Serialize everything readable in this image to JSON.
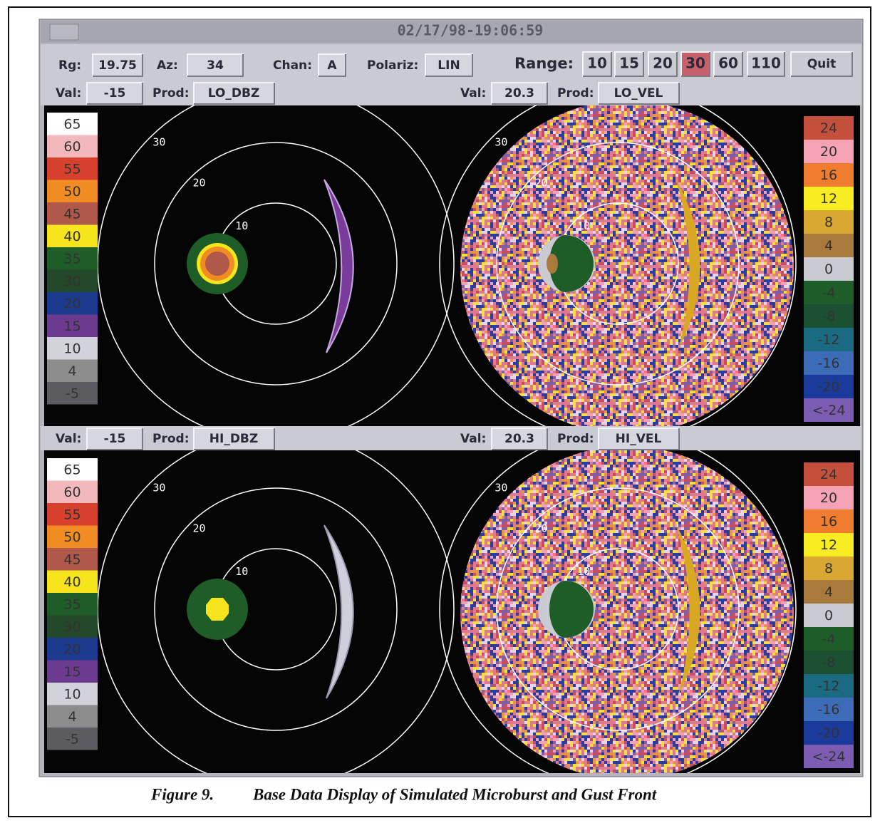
{
  "window": {
    "title": "02/17/98-19:06:59"
  },
  "toolbar": {
    "fields": [
      {
        "label": "Rg:",
        "value": "19.75"
      },
      {
        "label": "Az:",
        "value": "34"
      },
      {
        "label": "Chan:",
        "value": "A"
      },
      {
        "label": "Polariz:",
        "value": "LIN"
      }
    ],
    "range_label": "Range:",
    "range_buttons": [
      "10",
      "15",
      "20",
      "30",
      "60",
      "110"
    ],
    "selected_range_index": 3,
    "quit": "Quit"
  },
  "rows": [
    {
      "left": {
        "val_label": "Val:",
        "val": "-15",
        "prod_label": "Prod:",
        "prod": "LO_DBZ"
      },
      "right": {
        "val_label": "Val:",
        "val": "20.3",
        "prod_label": "Prod:",
        "prod": "LO_VEL"
      }
    },
    {
      "left": {
        "val_label": "Val:",
        "val": "-15",
        "prod_label": "Prod:",
        "prod": "HI_DBZ"
      },
      "right": {
        "val_label": "Val:",
        "val": "20.3",
        "prod_label": "Prod:",
        "prod": "HI_VEL"
      }
    }
  ],
  "ring_labels": [
    "30",
    "20",
    "10"
  ],
  "legends": {
    "reflectivity": {
      "labels": [
        "65",
        "60",
        "55",
        "50",
        "45",
        "40",
        "35",
        "30",
        "20",
        "15",
        "10",
        "4",
        "-5"
      ],
      "colors": [
        "#ffffff",
        "#f2b8bc",
        "#d8402e",
        "#f08c22",
        "#b0584a",
        "#f6e41c",
        "#1e5c28",
        "#24482a",
        "#1c3a8e",
        "#6c3a8e",
        "#d2d2da",
        "#8c8c8c",
        "#5c5c60"
      ]
    },
    "velocity": {
      "labels": [
        "24",
        "20",
        "16",
        "12",
        "8",
        "4",
        "0",
        "-4",
        "-8",
        "-12",
        "-16",
        "-20",
        "<-24"
      ],
      "colors": [
        "#c4503c",
        "#f4a2b4",
        "#f07c30",
        "#f8ec22",
        "#d8a832",
        "#a87a3c",
        "#cacad2",
        "#1e5c2a",
        "#1c5032",
        "#1a6a82",
        "#3c6cb8",
        "#1a3a9c",
        "#7c5cb2"
      ]
    }
  },
  "caption": {
    "figure": "Figure 9.",
    "text": "Base Data Display of Simulated Microburst and Gust Front"
  }
}
